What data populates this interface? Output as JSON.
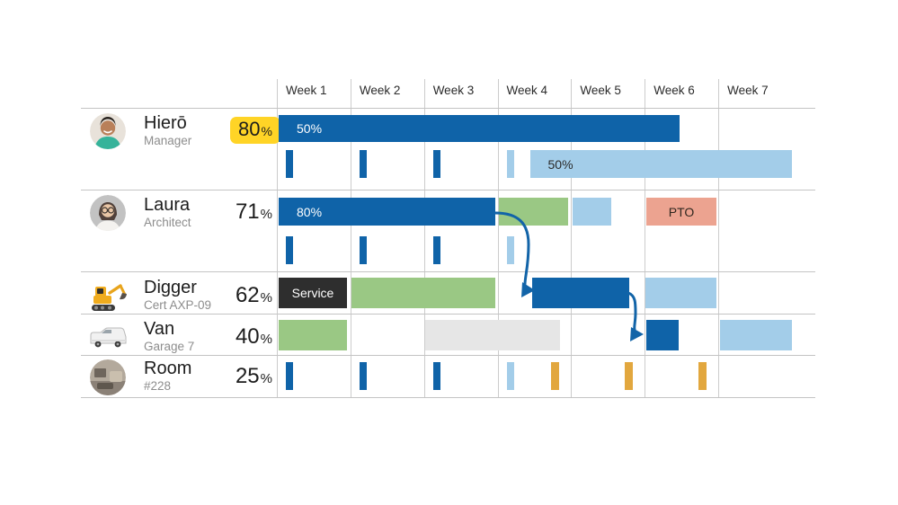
{
  "header": {
    "weeks": [
      "Week 1",
      "Week 2",
      "Week 3",
      "Week 4",
      "Week 5",
      "Week 6",
      "Week 7"
    ]
  },
  "palette": {
    "dark_blue": "#0f63a8",
    "light_blue": "#a3cde9",
    "green": "#9ac884",
    "salmon": "#eca390",
    "amber": "#e2a73e",
    "service_dark": "#2e2e2e",
    "neutral_gray": "#e6e6e6",
    "badge_yellow": "#ffd426",
    "grid_line": "#cccccc",
    "arrow_blue": "#1264a8"
  },
  "resources": [
    {
      "name": "Hierō",
      "subtitle": "Manager",
      "utilization": "80",
      "unit": "%",
      "badge": true,
      "lanes": [
        [
          {
            "type": "bar",
            "color": "dark_blue",
            "start": 0.024,
            "end": 5.474,
            "label": "50%",
            "label_color": "#ffffff",
            "label_align": "left"
          }
        ],
        [
          {
            "type": "tick",
            "color": "dark_blue",
            "week": 1,
            "align": "start"
          },
          {
            "type": "tick",
            "color": "dark_blue",
            "week": 2,
            "align": "start"
          },
          {
            "type": "tick",
            "color": "dark_blue",
            "week": 3,
            "align": "start"
          },
          {
            "type": "tick",
            "color": "light_blue",
            "week": 4,
            "align": "start"
          },
          {
            "type": "bar",
            "color": "light_blue",
            "start": 3.439,
            "end": 7.0,
            "label": "50%",
            "label_color": "#2b2b2b",
            "label_align": "left"
          }
        ]
      ]
    },
    {
      "name": "Laura",
      "subtitle": "Architect",
      "utilization": "71",
      "unit": "%",
      "badge": false,
      "lanes": [
        [
          {
            "type": "bar",
            "color": "dark_blue",
            "start": 0.024,
            "end": 2.969,
            "label": "80%",
            "label_color": "#ffffff",
            "label_align": "left"
          },
          {
            "type": "bar",
            "color": "green",
            "start": 3.018,
            "end": 3.958
          },
          {
            "type": "bar",
            "color": "light_blue",
            "start": 4.013,
            "end": 4.545
          },
          {
            "type": "bar",
            "color": "salmon",
            "start": 5.021,
            "end": 5.974,
            "label": "PTO",
            "label_color": "#30271f",
            "label_align": "center"
          }
        ],
        [
          {
            "type": "tick",
            "color": "dark_blue",
            "week": 1,
            "align": "start"
          },
          {
            "type": "tick",
            "color": "dark_blue",
            "week": 2,
            "align": "start"
          },
          {
            "type": "tick",
            "color": "dark_blue",
            "week": 3,
            "align": "start"
          },
          {
            "type": "tick",
            "color": "light_blue",
            "week": 4,
            "align": "start"
          }
        ]
      ]
    },
    {
      "name": "Digger",
      "subtitle": "Cert AXP-09",
      "utilization": "62",
      "unit": "%",
      "badge": false,
      "lanes": [
        [
          {
            "type": "bar",
            "color": "service_dark",
            "start": 0.024,
            "end": 0.953,
            "label": "Service",
            "label_color": "#ffffff",
            "label_align": "center"
          },
          {
            "type": "bar",
            "color": "green",
            "start": 1.014,
            "end": 2.969
          },
          {
            "type": "bar",
            "color": "dark_blue",
            "start": 3.47,
            "end": 4.789
          },
          {
            "type": "bar",
            "color": "light_blue",
            "start": 5.009,
            "end": 5.968
          }
        ]
      ]
    },
    {
      "name": "Van",
      "subtitle": "Garage 7",
      "utilization": "40",
      "unit": "%",
      "badge": false,
      "lanes": [
        [
          {
            "type": "bar",
            "color": "green",
            "start": 0.024,
            "end": 0.953
          },
          {
            "type": "bar",
            "color": "neutral_gray",
            "start": 2.01,
            "end": 3.849
          },
          {
            "type": "bar",
            "color": "dark_blue",
            "start": 5.021,
            "end": 5.461
          },
          {
            "type": "bar",
            "color": "light_blue",
            "start": 6.023,
            "end": 7.0
          }
        ]
      ]
    },
    {
      "name": "Room",
      "subtitle": "#228",
      "utilization": "25",
      "unit": "%",
      "badge": false,
      "lanes": [
        [
          {
            "type": "tick",
            "color": "dark_blue",
            "week": 1,
            "align": "start"
          },
          {
            "type": "tick",
            "color": "dark_blue",
            "week": 2,
            "align": "start"
          },
          {
            "type": "tick",
            "color": "dark_blue",
            "week": 3,
            "align": "start"
          },
          {
            "type": "tick",
            "color": "light_blue",
            "week": 4,
            "align": "start"
          },
          {
            "type": "tick",
            "color": "amber",
            "week": 4,
            "align": "end"
          },
          {
            "type": "tick",
            "color": "amber",
            "week": 5,
            "align": "end"
          },
          {
            "type": "tick",
            "color": "amber",
            "week": 6,
            "align": "end"
          }
        ]
      ]
    }
  ]
}
